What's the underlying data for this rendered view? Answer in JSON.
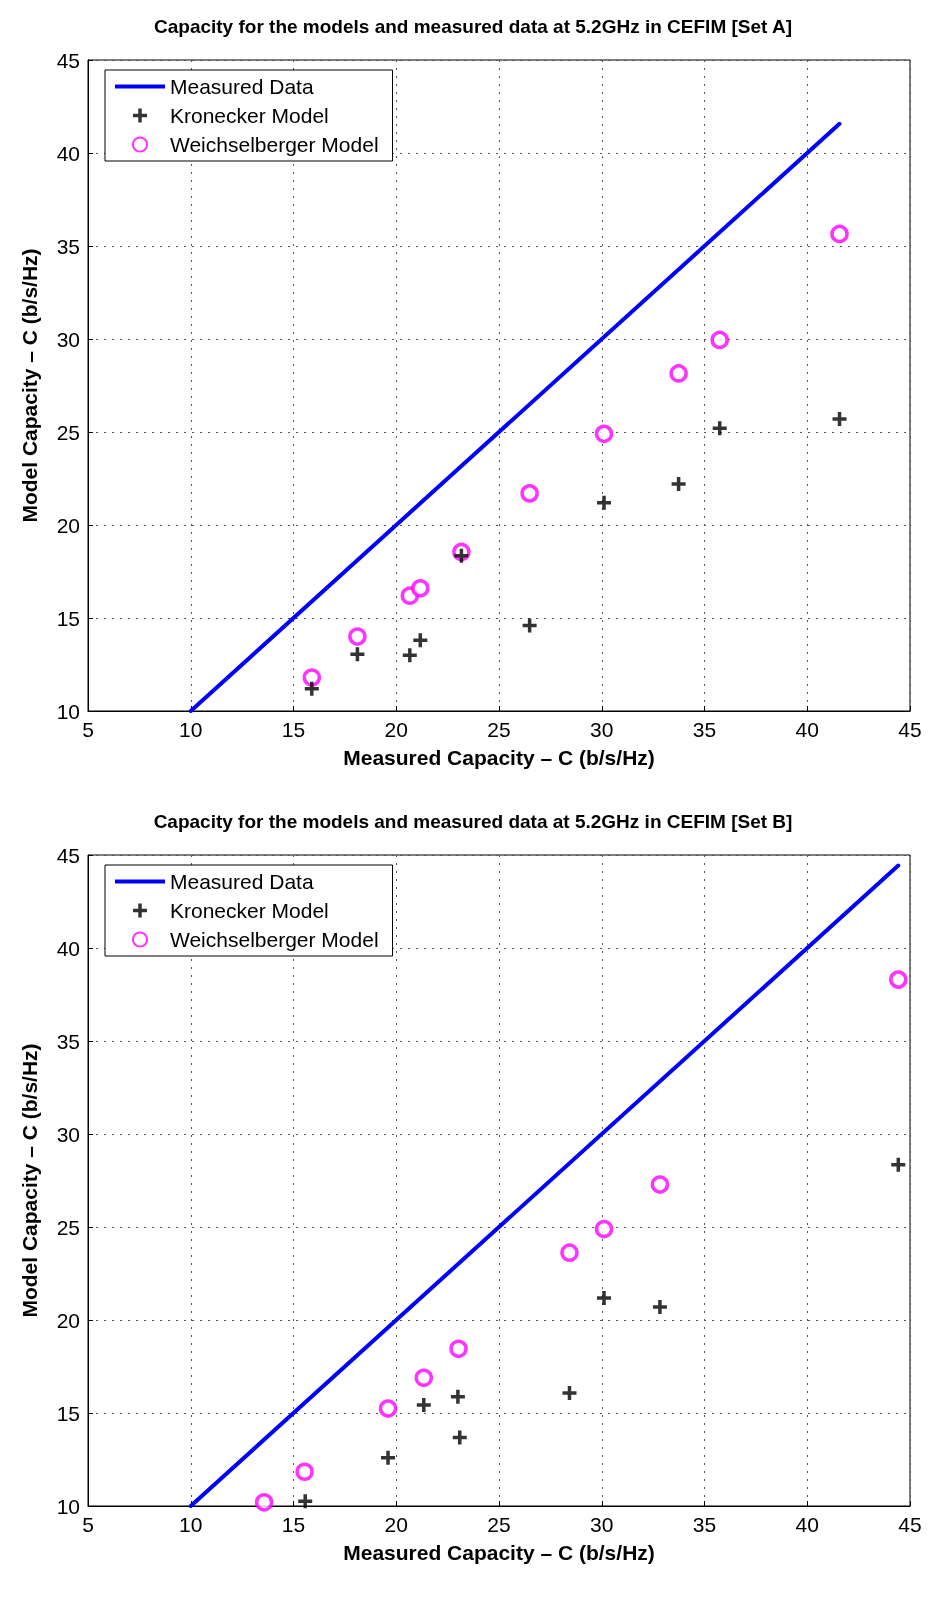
{
  "chart_data": [
    {
      "type": "scatter",
      "title": "Capacity for the models and measured data at 5.2GHz in CEFIM [Set A]",
      "xlabel": "Measured Capacity – C (b/s/Hz)",
      "ylabel": "Model Capacity – C (b/s/Hz)",
      "xlim": [
        5,
        45
      ],
      "xticks": [
        5,
        10,
        15,
        20,
        25,
        30,
        35,
        40,
        45
      ],
      "ylim": [
        10,
        45
      ],
      "yticks": [
        10,
        15,
        20,
        25,
        30,
        35,
        40,
        45
      ],
      "grid": true,
      "legend": "top left",
      "series": [
        {
          "name": "Measured Data",
          "type": "line",
          "color": "#0000ff",
          "marker": "none",
          "line_style": "solid",
          "x": [
            10,
            41.57
          ],
          "values": [
            10,
            41.57
          ]
        },
        {
          "name": "Kronecker Model",
          "color": "#000000",
          "marker": "cross",
          "x": [
            15.89,
            18.11,
            20.66,
            21.17,
            23.17,
            26.49,
            30.11,
            33.74,
            35.74,
            41.57
          ],
          "values": [
            11.2,
            13.05,
            13.0,
            13.8,
            18.35,
            14.6,
            21.2,
            22.2,
            25.2,
            25.7
          ]
        },
        {
          "name": "Weichselberger Model",
          "color": "#ff00ff",
          "marker": "circle",
          "x": [
            15.89,
            18.11,
            20.66,
            21.17,
            23.17,
            26.49,
            30.11,
            33.74,
            35.74,
            41.57
          ],
          "values": [
            11.8,
            14.0,
            16.2,
            16.6,
            18.55,
            21.7,
            24.9,
            28.15,
            29.95,
            35.65
          ]
        }
      ]
    },
    {
      "type": "scatter",
      "title": "Capacity for the models and measured data at 5.2GHz in CEFIM [Set B]",
      "xlabel": "Measured Capacity – C (b/s/Hz)",
      "ylabel": "Model Capacity – C (b/s/Hz)",
      "xlim": [
        5,
        45
      ],
      "xticks": [
        5,
        10,
        15,
        20,
        25,
        30,
        35,
        40,
        45
      ],
      "ylim": [
        10,
        45
      ],
      "yticks": [
        10,
        15,
        20,
        25,
        30,
        35,
        40,
        45
      ],
      "grid": true,
      "legend": "top left",
      "series": [
        {
          "name": "Measured Data",
          "type": "line",
          "color": "#0000ff",
          "marker": "none",
          "line_style": "solid",
          "x": [
            10,
            44.43
          ],
          "values": [
            10,
            44.43
          ]
        },
        {
          "name": "Kronecker Model",
          "color": "#000000",
          "marker": "cross",
          "x": [
            15.57,
            19.6,
            21.34,
            23.0,
            23.09,
            28.43,
            30.11,
            32.83,
            44.43
          ],
          "values": [
            10.25,
            12.6,
            15.43,
            15.87,
            13.68,
            16.07,
            21.18,
            20.7,
            28.35
          ]
        },
        {
          "name": "Weichselberger Model",
          "color": "#ff00ff",
          "marker": "circle",
          "x": [
            13.57,
            15.54,
            19.6,
            21.34,
            23.03,
            28.43,
            30.11,
            32.83,
            44.43
          ],
          "values": [
            10.2,
            11.84,
            15.24,
            16.89,
            18.45,
            23.62,
            24.89,
            27.28,
            38.3
          ]
        }
      ]
    }
  ]
}
